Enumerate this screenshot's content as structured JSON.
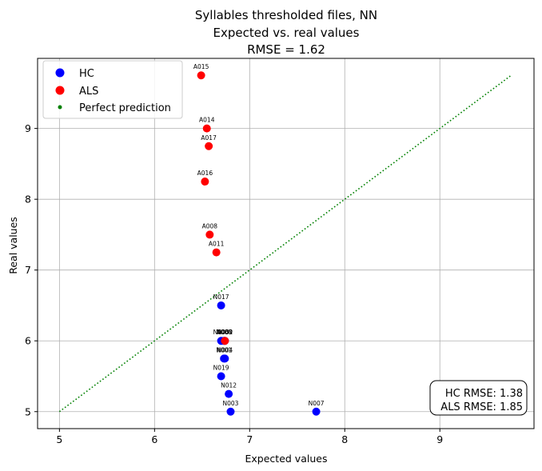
{
  "chart_data": {
    "type": "scatter",
    "title_lines": [
      "Syllables thresholded files, NN",
      "Expected vs. real values",
      "RMSE = 1.62"
    ],
    "xlabel": "Expected values",
    "ylabel": "Real values",
    "xlim": [
      4.77,
      9.99
    ],
    "ylim": [
      4.76,
      9.99
    ],
    "xticks": [
      5,
      6,
      7,
      8,
      9
    ],
    "yticks": [
      5,
      6,
      7,
      8,
      9
    ],
    "grid": true,
    "legend_position": "top-left",
    "legend": [
      {
        "label": "HC",
        "color": "#0000ff",
        "marker": "large-circle"
      },
      {
        "label": "ALS",
        "color": "#ff0000",
        "marker": "large-circle"
      },
      {
        "label": "Perfect prediction",
        "color": "#008000",
        "marker": "small-circle"
      }
    ],
    "perfect_line": {
      "x": [
        5,
        9.75
      ],
      "y": [
        5,
        9.75
      ],
      "color": "#008000",
      "style": "dotted"
    },
    "rmse_box_position": "bottom-right",
    "rmse_box_lines": [
      "HC RMSE: 1.38",
      "ALS RMSE: 1.85"
    ],
    "series": [
      {
        "name": "HC",
        "color": "#0000ff",
        "points": [
          {
            "label": "N017",
            "x": 6.7,
            "y": 6.5
          },
          {
            "label": "N005",
            "x": 6.7,
            "y": 6.0
          },
          {
            "label": "N008",
            "x": 6.73,
            "y": 6.0
          },
          {
            "label": "N002",
            "x": 6.74,
            "y": 6.0
          },
          {
            "label": "N001",
            "x": 6.73,
            "y": 5.75
          },
          {
            "label": "N004",
            "x": 6.74,
            "y": 5.75
          },
          {
            "label": "N019",
            "x": 6.7,
            "y": 5.5
          },
          {
            "label": "N012",
            "x": 6.78,
            "y": 5.25
          },
          {
            "label": "N003",
            "x": 6.8,
            "y": 5.0
          },
          {
            "label": "N007",
            "x": 7.7,
            "y": 5.0
          }
        ]
      },
      {
        "name": "ALS",
        "color": "#ff0000",
        "points": [
          {
            "label": "A015",
            "x": 6.49,
            "y": 9.75
          },
          {
            "label": "A014",
            "x": 6.55,
            "y": 9.0
          },
          {
            "label": "A017",
            "x": 6.57,
            "y": 8.75
          },
          {
            "label": "A016",
            "x": 6.53,
            "y": 8.25
          },
          {
            "label": "A008",
            "x": 6.58,
            "y": 7.5
          },
          {
            "label": "A011",
            "x": 6.65,
            "y": 7.25
          },
          {
            "label": "A009",
            "x": 6.74,
            "y": 6.0
          }
        ]
      }
    ]
  }
}
